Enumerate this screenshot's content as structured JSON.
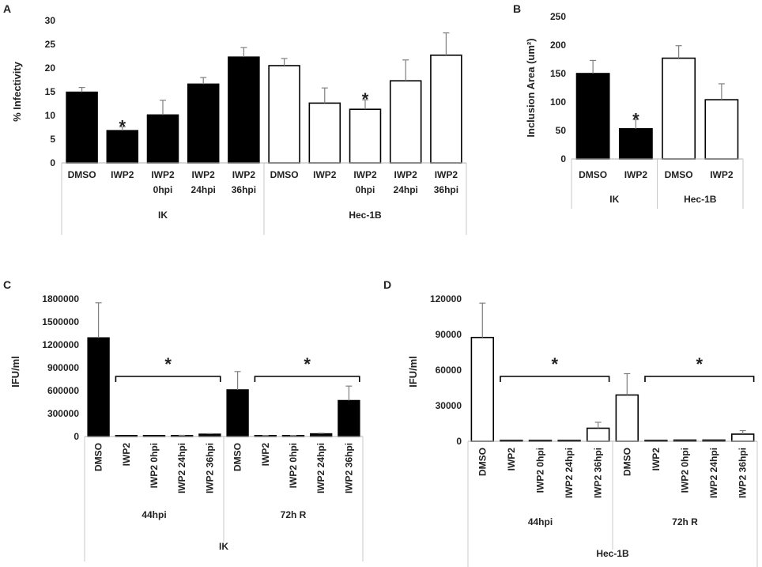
{
  "chart_data": [
    {
      "panel": "A",
      "type": "bar",
      "ylabel": "% Infectivity",
      "ylim": [
        0,
        30
      ],
      "yticks": [
        0,
        5,
        10,
        15,
        20,
        25,
        30
      ],
      "ytick_labels": [
        "0",
        "5",
        "10",
        "15",
        "20",
        "25",
        "30"
      ],
      "categories": [
        [
          "DMSO"
        ],
        [
          "IWP2"
        ],
        [
          "IWP2",
          "0hpi"
        ],
        [
          "IWP2",
          "24hpi"
        ],
        [
          "IWP2",
          "36hpi"
        ],
        [
          "DMSO"
        ],
        [
          "IWP2"
        ],
        [
          "IWP2",
          "0hpi"
        ],
        [
          "IWP2",
          "24hpi"
        ],
        [
          "IWP2",
          "36hpi"
        ]
      ],
      "values": [
        14.9,
        6.8,
        10.1,
        16.6,
        22.3,
        20.5,
        12.6,
        11.3,
        17.3,
        22.7
      ],
      "errors": [
        1.0,
        0.8,
        3.1,
        1.4,
        2.0,
        1.5,
        3.2,
        2.0,
        4.4,
        4.7
      ],
      "fills": [
        "black",
        "black",
        "black",
        "black",
        "black",
        "white",
        "white",
        "white",
        "white",
        "white"
      ],
      "stars": [
        1,
        7
      ],
      "star_text": "*",
      "groups": [
        {
          "label": "IK",
          "span": [
            0,
            4
          ]
        },
        {
          "label": "Hec-1B",
          "span": [
            5,
            9
          ]
        }
      ]
    },
    {
      "panel": "B",
      "type": "bar",
      "ylabel": "Inclusion Area (um²)",
      "ylim": [
        0,
        250
      ],
      "yticks": [
        0,
        50,
        100,
        150,
        200,
        250
      ],
      "ytick_labels": [
        "0",
        "50",
        "100",
        "150",
        "200",
        "250"
      ],
      "categories": [
        [
          "DMSO"
        ],
        [
          "IWP2"
        ],
        [
          "DMSO"
        ],
        [
          "IWP2"
        ]
      ],
      "values": [
        150,
        53,
        177,
        104
      ],
      "errors": [
        23,
        16,
        22,
        28
      ],
      "fills": [
        "black",
        "black",
        "white",
        "white"
      ],
      "stars": [
        1
      ],
      "star_text": "*",
      "groups": [
        {
          "label": "IK",
          "span": [
            0,
            1
          ]
        },
        {
          "label": "Hec-1B",
          "span": [
            2,
            3
          ]
        }
      ]
    },
    {
      "panel": "C",
      "type": "bar",
      "ylabel": "IFU/ml",
      "ylim": [
        0,
        1800000
      ],
      "yticks": [
        0,
        300000,
        600000,
        900000,
        1200000,
        1500000,
        1800000
      ],
      "ytick_labels": [
        "0",
        "300000",
        "600000",
        "900000",
        "1200000",
        "1500000",
        "1800000"
      ],
      "categories": [
        "DMSO",
        "IWP2",
        "IWP2 0hpi",
        "IWP2 24hpi",
        "IWP2 36hpi",
        "DMSO",
        "IWP2",
        "IWP2 0hpi",
        "IWP2 24hpi",
        "IWP2 36hpi"
      ],
      "values": [
        1290000,
        0,
        0,
        12000,
        30000,
        610000,
        10000,
        10000,
        35000,
        470000
      ],
      "errors": [
        460000,
        0,
        0,
        4000,
        8000,
        240000,
        4000,
        4000,
        8000,
        190000
      ],
      "fills": [
        "black",
        "black",
        "black",
        "black",
        "black",
        "black",
        "black",
        "black",
        "black",
        "black"
      ],
      "brackets": [
        {
          "from": 1,
          "to": 4,
          "label": "*"
        },
        {
          "from": 6,
          "to": 9,
          "label": "*"
        }
      ],
      "groups": [
        {
          "label": "44hpi",
          "span": [
            0,
            4
          ]
        },
        {
          "label": "72h R",
          "span": [
            5,
            9
          ]
        }
      ],
      "outer_label": "IK"
    },
    {
      "panel": "D",
      "type": "bar",
      "ylabel": "IFU/ml",
      "ylim": [
        0,
        120000
      ],
      "yticks": [
        0,
        30000,
        60000,
        90000,
        120000
      ],
      "ytick_labels": [
        "0",
        "30000",
        "60000",
        "90000",
        "120000"
      ],
      "categories": [
        "DMSO",
        "IWP2",
        "IWP2 0hpi",
        "IWP2 24hpi",
        "IWP2 36hpi",
        "DMSO",
        "IWP2",
        "IWP2 0hpi",
        "IWP2 24hpi",
        "IWP2 36hpi"
      ],
      "values": [
        87500,
        400,
        400,
        400,
        11000,
        39000,
        600,
        1000,
        1000,
        6000
      ],
      "errors": [
        29000,
        0,
        0,
        0,
        5000,
        18000,
        0,
        0,
        0,
        3000
      ],
      "fills": [
        "white",
        "white",
        "white",
        "white",
        "white",
        "white",
        "white",
        "white",
        "white",
        "white"
      ],
      "brackets": [
        {
          "from": 1,
          "to": 4,
          "label": "*"
        },
        {
          "from": 6,
          "to": 9,
          "label": "*"
        }
      ],
      "groups": [
        {
          "label": "44hpi",
          "span": [
            0,
            4
          ]
        },
        {
          "label": "72h R",
          "span": [
            5,
            9
          ]
        }
      ],
      "outer_label": "Hec-1B"
    }
  ]
}
